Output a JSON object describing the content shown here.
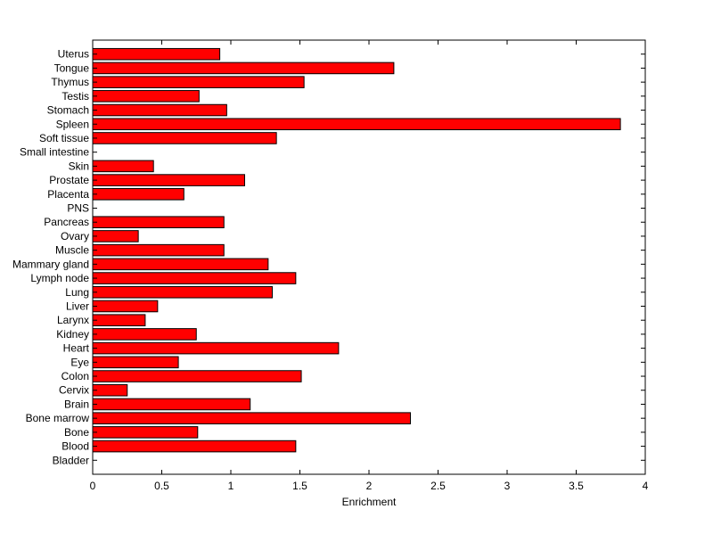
{
  "chart_data": {
    "type": "bar",
    "orientation": "horizontal",
    "title": "",
    "xlabel": "Enrichment",
    "ylabel": "",
    "xlim": [
      0,
      4
    ],
    "xticks": [
      "0",
      "0.5",
      "1",
      "1.5",
      "2",
      "2.5",
      "3",
      "3.5",
      "4"
    ],
    "grid": false,
    "bar_color": "#ff0000",
    "bar_edge_color": "#000000",
    "categories": [
      "Bladder",
      "Blood",
      "Bone",
      "Bone marrow",
      "Brain",
      "Cervix",
      "Colon",
      "Eye",
      "Heart",
      "Kidney",
      "Larynx",
      "Liver",
      "Lung",
      "Lymph node",
      "Mammary gland",
      "Muscle",
      "Ovary",
      "Pancreas",
      "PNS",
      "Placenta",
      "Prostate",
      "Skin",
      "Small intestine",
      "Soft tissue",
      "Spleen",
      "Stomach",
      "Testis",
      "Thymus",
      "Tongue",
      "Uterus"
    ],
    "values": [
      0,
      1.47,
      0.76,
      2.3,
      1.14,
      0.25,
      1.51,
      0.62,
      1.78,
      0.75,
      0.38,
      0.47,
      1.3,
      1.47,
      1.27,
      0.95,
      0.33,
      0.95,
      0,
      0.66,
      1.1,
      0.44,
      0,
      1.33,
      3.82,
      0.97,
      0.77,
      1.53,
      2.18,
      0.92
    ]
  }
}
